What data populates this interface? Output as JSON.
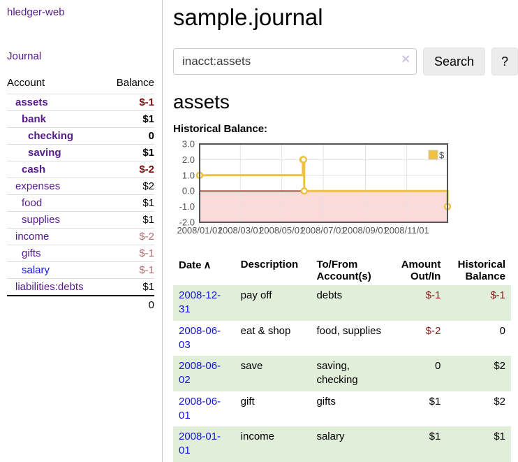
{
  "app": {
    "brand": "hledger-web",
    "nav_journal": "Journal"
  },
  "sidebar": {
    "columns": {
      "account": "Account",
      "balance": "Balance"
    },
    "accounts": [
      {
        "name": "assets",
        "indent": 1,
        "bold": true,
        "balance": "$-1",
        "tone": "neg-strong"
      },
      {
        "name": "bank",
        "indent": 2,
        "bold": true,
        "balance": "$1",
        "tone": "plain"
      },
      {
        "name": "checking",
        "indent": 3,
        "bold": true,
        "balance": "0",
        "tone": "plain"
      },
      {
        "name": "saving",
        "indent": 3,
        "bold": true,
        "balance": "$1",
        "tone": "plain"
      },
      {
        "name": "cash",
        "indent": 2,
        "bold": true,
        "balance": "$-2",
        "tone": "neg-strong"
      },
      {
        "name": "expenses",
        "indent": 1,
        "bold": false,
        "balance": "$2",
        "tone": "plain"
      },
      {
        "name": "food",
        "indent": 2,
        "bold": false,
        "balance": "$1",
        "tone": "plain"
      },
      {
        "name": "supplies",
        "indent": 2,
        "bold": false,
        "balance": "$1",
        "tone": "plain"
      },
      {
        "name": "income",
        "indent": 1,
        "bold": false,
        "balance": "$-2",
        "tone": "neg-muted"
      },
      {
        "name": "gifts",
        "indent": 2,
        "bold": false,
        "balance": "$-1",
        "tone": "neg-muted"
      },
      {
        "name": "salary",
        "indent": 2,
        "bold": false,
        "link": "blue",
        "balance": "$-1",
        "tone": "neg-muted"
      },
      {
        "name": "liabilities:debts",
        "indent": 1,
        "bold": false,
        "balance": "$1",
        "tone": "plain"
      }
    ],
    "total": "0"
  },
  "main": {
    "title": "sample.journal",
    "search": {
      "value": "inacct:assets",
      "clear_icon": "✕",
      "button": "Search",
      "help_button": "?"
    },
    "account_heading": "assets",
    "chart_label": "Historical Balance:"
  },
  "chart_data": {
    "type": "line",
    "step": true,
    "title": "Historical Balance",
    "legend": {
      "position": "top-right"
    },
    "series": [
      {
        "name": "$",
        "color": "#edc240",
        "points": [
          {
            "date": "2008-01-01",
            "value": 1
          },
          {
            "date": "2008-06-01",
            "value": 2
          },
          {
            "date": "2008-06-02",
            "value": 2
          },
          {
            "date": "2008-06-03",
            "value": 0
          },
          {
            "date": "2008-12-31",
            "value": -1
          }
        ]
      }
    ],
    "x_ticks": [
      {
        "date": "2008-01-01",
        "label": "2008/01/01"
      },
      {
        "date": "2008-03-01",
        "label": "2008/03/01"
      },
      {
        "date": "2008-05-01",
        "label": "2008/05/01"
      },
      {
        "date": "2008-07-01",
        "label": "2008/07/01"
      },
      {
        "date": "2008-09-01",
        "label": "2008/09/01"
      },
      {
        "date": "2008-11-01",
        "label": "2008/11/01"
      }
    ],
    "y_ticks": [
      "3.0",
      "2.0",
      "1.0",
      "0.0",
      "-1.0",
      "-2.0"
    ],
    "ylim": [
      -2,
      3
    ],
    "x_range": [
      "2008-01-01",
      "2008-12-31"
    ],
    "colors": {
      "negative_region": "#fcdada",
      "zero_line": "#a00000",
      "grid": "#e3e3e3",
      "border": "#545454",
      "tick_text": "#545454"
    }
  },
  "register": {
    "headers": {
      "date": "Date",
      "sort_icon": "∧",
      "description": "Description",
      "accounts": "To/From Account(s)",
      "amount": "Amount Out/In",
      "balance": "Historical Balance"
    },
    "rows": [
      {
        "date": "2008-12-31",
        "description": "pay off",
        "accounts": "debts",
        "amount": "$-1",
        "balance": "$-1"
      },
      {
        "date": "2008-06-03",
        "description": "eat & shop",
        "accounts": "food, supplies",
        "amount": "$-2",
        "balance": "0"
      },
      {
        "date": "2008-06-02",
        "description": "save",
        "accounts": "saving, checking",
        "amount": "0",
        "balance": "$2"
      },
      {
        "date": "2008-06-01",
        "description": "gift",
        "accounts": "gifts",
        "amount": "$1",
        "balance": "$2"
      },
      {
        "date": "2008-01-01",
        "description": "income",
        "accounts": "salary",
        "amount": "$1",
        "balance": "$1"
      }
    ]
  }
}
